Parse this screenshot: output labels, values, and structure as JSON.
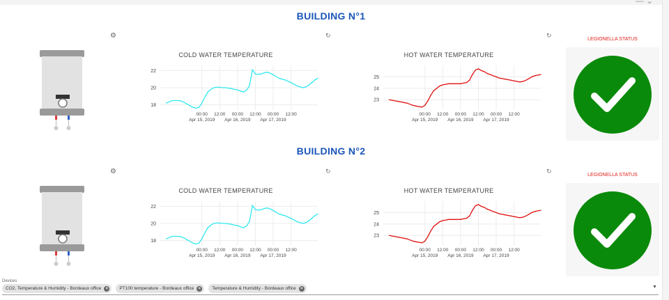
{
  "window_controls": {
    "minimize": "—",
    "menu": "⌄"
  },
  "buildings": [
    {
      "title": "BUILDING N°1",
      "cold": {
        "title": "COLD WATER TEMPERATURE"
      },
      "hot": {
        "title": "HOT WATER TEMPERATURE"
      },
      "legionella": {
        "title": "LEGIONELLA STATUS",
        "status": "ok"
      }
    },
    {
      "title": "BUILDING N°2",
      "cold": {
        "title": "COLD WATER TEMPERATURE"
      },
      "hot": {
        "title": "HOT WATER TEMPERATURE"
      },
      "legionella": {
        "title": "LEGIONELLA STATUS",
        "status": "ok"
      }
    }
  ],
  "icons": {
    "gear": "gear-icon",
    "refresh": "refresh-icon",
    "check": "check-icon",
    "chip_remove": "close-icon"
  },
  "colors": {
    "title_blue": "#1b56b8",
    "cold_line": "#2ee8f0",
    "hot_line": "#e11010",
    "legionella_red": "#e0201a",
    "check_green": "#0a8a0a"
  },
  "chart_data": [
    {
      "type": "line",
      "title": "COLD WATER TEMPERATURE",
      "x": [
        0,
        2,
        4,
        6,
        8,
        10,
        12,
        14,
        16,
        18,
        20,
        22,
        24,
        26,
        28,
        30,
        32,
        34,
        36,
        38,
        40,
        42,
        44,
        46,
        48,
        50,
        52,
        54,
        56,
        58,
        60,
        62,
        64,
        66,
        68,
        70,
        72,
        74,
        76,
        78,
        80,
        82,
        84,
        86,
        88,
        90,
        92,
        94,
        96,
        98,
        100,
        102
      ],
      "series": [
        {
          "values": [
            18.2,
            18.35,
            18.5,
            18.5,
            18.5,
            18.45,
            18.3,
            18.1,
            17.9,
            17.7,
            17.6,
            17.7,
            18.2,
            18.9,
            19.5,
            19.8,
            20.0,
            20.05,
            20.05,
            20.0,
            20.0,
            19.95,
            19.9,
            19.8,
            19.75,
            19.6,
            19.5,
            19.7,
            20.2,
            22.1,
            21.6,
            21.55,
            21.6,
            21.75,
            21.8,
            21.7,
            21.5,
            21.3,
            21.1,
            21.0,
            20.9,
            20.75,
            20.6,
            20.4,
            20.2,
            20.1,
            20.0,
            20.1,
            20.3,
            20.6,
            20.9,
            21.1
          ],
          "color": "#2ee8f0"
        }
      ],
      "xticks": [
        "00:00\nApr 15, 2019",
        "12:00",
        "00:00\nApr 16, 2019",
        "12:00",
        "00:00\nApr 17, 2019",
        "12:00"
      ],
      "xtick_positions": [
        24,
        36,
        48,
        60,
        72,
        84
      ],
      "xlim": [
        -4,
        102
      ],
      "yticks": [
        18,
        20,
        22
      ],
      "ylim": [
        17.4,
        22.6
      ],
      "grid": true
    },
    {
      "type": "line",
      "title": "HOT WATER TEMPERATURE",
      "x": [
        0,
        2,
        4,
        6,
        8,
        10,
        12,
        14,
        16,
        18,
        20,
        22,
        24,
        26,
        28,
        30,
        32,
        34,
        36,
        38,
        40,
        42,
        44,
        46,
        48,
        50,
        52,
        54,
        56,
        58,
        60,
        62,
        64,
        66,
        68,
        70,
        72,
        74,
        76,
        78,
        80,
        82,
        84,
        86,
        88,
        90,
        92,
        94,
        96,
        98,
        100,
        102
      ],
      "series": [
        {
          "values": [
            23.0,
            22.95,
            22.9,
            22.85,
            22.8,
            22.75,
            22.7,
            22.6,
            22.5,
            22.45,
            22.4,
            22.35,
            22.5,
            22.9,
            23.4,
            23.8,
            24.0,
            24.2,
            24.3,
            24.35,
            24.4,
            24.4,
            24.4,
            24.4,
            24.4,
            24.45,
            24.5,
            24.7,
            25.2,
            25.6,
            25.7,
            25.55,
            25.45,
            25.3,
            25.2,
            25.1,
            25.0,
            24.9,
            24.85,
            24.8,
            24.75,
            24.7,
            24.65,
            24.6,
            24.55,
            24.6,
            24.7,
            24.85,
            25.0,
            25.1,
            25.15,
            25.2
          ],
          "color": "#e11010"
        }
      ],
      "xticks": [
        "00:00\nApr 15, 2019",
        "12:00",
        "00:00\nApr 16, 2019",
        "12:00",
        "00:00\nApr 17, 2019",
        "12:00"
      ],
      "xtick_positions": [
        24,
        36,
        48,
        60,
        72,
        84
      ],
      "xlim": [
        -4,
        102
      ],
      "yticks": [
        23,
        24,
        25
      ],
      "ylim": [
        22.1,
        26.0
      ],
      "grid": true
    }
  ],
  "devices": {
    "label": "Devices",
    "chips": [
      "CO2, Temperature & Humidity - Bordeaux office",
      "PT100 temperature - Bordeaux office",
      "Temperature & Humidity - Bordeaux office"
    ]
  }
}
